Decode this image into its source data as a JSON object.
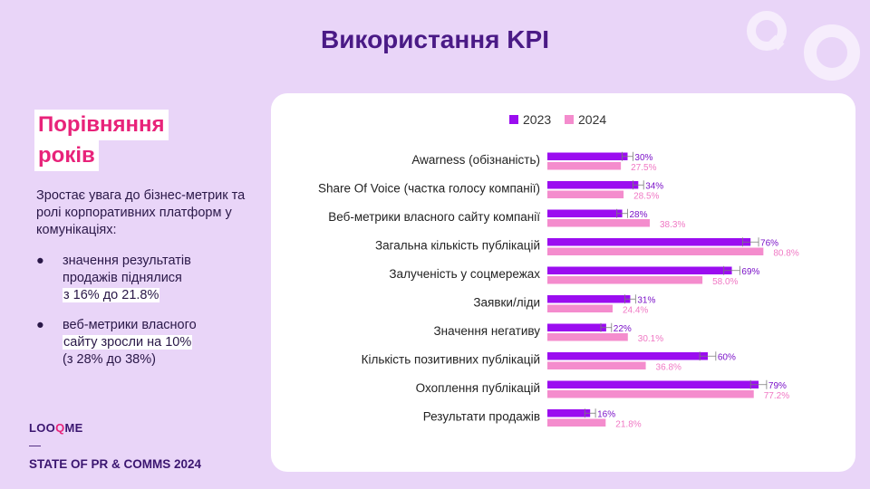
{
  "slide": {
    "title": "Використання KPI",
    "heading_line1": "Порівняння",
    "heading_line2": "років",
    "intro": "Зростає увага до бізнес-метрик та ролі корпоративних платформ у комунікаціях:",
    "bullets": [
      {
        "line1": "значення результатів",
        "line2": "продажів піднялися",
        "line3": "з 16% до 21.8%"
      },
      {
        "line1": "веб-метрики власного",
        "line2": "сайту зросли на 10%",
        "line3": "(з 28% до 38%)"
      }
    ],
    "bullet_symbol": "●",
    "logo_left": "LOO",
    "logo_accent": "Q",
    "logo_right": "ME",
    "dash": "—",
    "footer": "STATE OF PR & COMMS 2024"
  },
  "colors": {
    "background": "#e9d5f8",
    "title": "#4a1a86",
    "accent_pink": "#e8237a",
    "series_2023": "#9b0df0",
    "series_2024": "#f48ccd"
  },
  "chart_data": {
    "type": "bar",
    "orientation": "horizontal",
    "title": "",
    "legend_position": "top",
    "categories": [
      "Awarness (обізнаність)",
      "Share Of Voice (частка голосу компанії)",
      "Веб-метрики власного сайту компанії",
      "Загальна кількість публікацій",
      "Залученість у соцмережах",
      "Заявки/ліди",
      "Значення негативу",
      "Кількість позитивних публікацій",
      "Охоплення публікацій",
      "Результати продажів"
    ],
    "series": [
      {
        "name": "2023",
        "color": "#9b0df0",
        "values": [
          30,
          34,
          28,
          76,
          69,
          31,
          22,
          60,
          79,
          16
        ],
        "labels": [
          "30%",
          "34%",
          "28%",
          "76%",
          "69%",
          "31%",
          "22%",
          "60%",
          "79%",
          "16%"
        ],
        "error": [
          2,
          2,
          2,
          3,
          3,
          2,
          2,
          3,
          3,
          2
        ]
      },
      {
        "name": "2024",
        "color": "#f48ccd",
        "values": [
          27.5,
          28.5,
          38.3,
          80.8,
          58.0,
          24.4,
          30.1,
          36.8,
          77.2,
          21.8
        ],
        "labels": [
          "27.5%",
          "28.5%",
          "38.3%",
          "80.8%",
          "58.0%",
          "24.4%",
          "30.1%",
          "36.8%",
          "77.2%",
          "21.8%"
        ]
      }
    ],
    "xlim": [
      0,
      100
    ],
    "grid": false
  }
}
